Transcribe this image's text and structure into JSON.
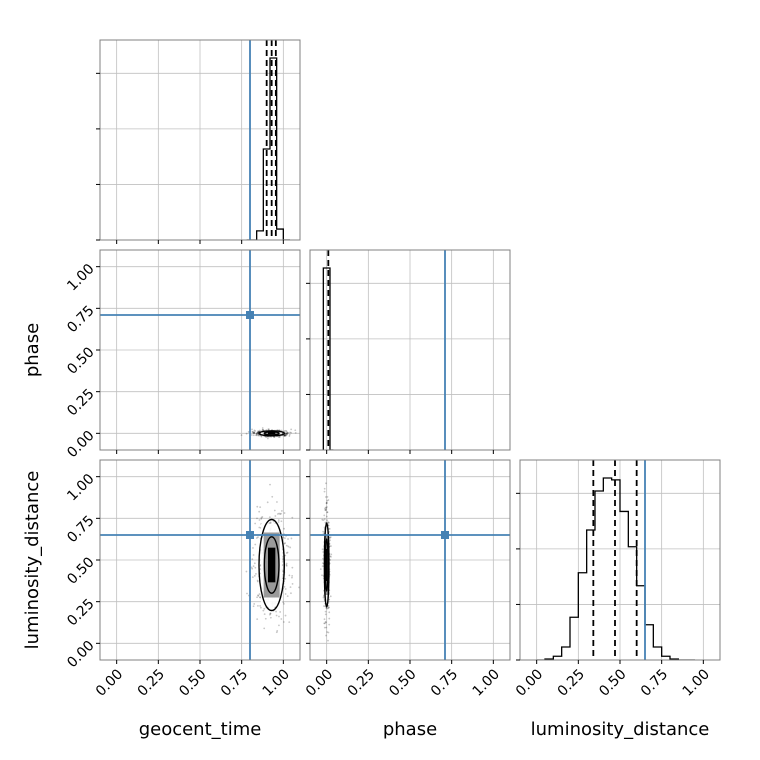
{
  "chart_data": {
    "type": "corner",
    "parameters": [
      "geocent_time",
      "phase",
      "luminosity_distance"
    ],
    "axis_range": [
      -0.1,
      1.1
    ],
    "tick_labels": [
      "0.00",
      "0.25",
      "0.50",
      "0.75",
      "1.00"
    ],
    "grid": true,
    "truth_values": {
      "geocent_time": 0.8,
      "phase": 0.71,
      "luminosity_distance": 0.65
    },
    "histograms": [
      {
        "parameter": "geocent_time",
        "bin_edges": [
          0.78,
          0.84,
          0.86,
          0.88,
          0.9,
          0.92,
          0.94,
          0.96,
          0.98,
          1.0,
          1.04
        ],
        "counts": [
          0,
          0.05,
          0.05,
          0.5,
          0.5,
          1.0,
          1.0,
          0.06,
          0.06,
          0
        ],
        "quantile_lines": [
          0.9,
          0.93,
          0.955
        ]
      },
      {
        "parameter": "phase",
        "bin_edges": [
          -0.02,
          0.0,
          0.02,
          0.04
        ],
        "counts": [
          1.0,
          1.0,
          0.0
        ],
        "quantile_lines": [
          0.01
        ]
      },
      {
        "parameter": "luminosity_distance",
        "bin_edges": [
          0.0,
          0.05,
          0.1,
          0.15,
          0.2,
          0.25,
          0.3,
          0.35,
          0.4,
          0.45,
          0.5,
          0.55,
          0.6,
          0.65,
          0.7,
          0.75,
          0.8,
          0.85,
          0.9,
          0.95
        ],
        "counts": [
          0,
          0.005,
          0.02,
          0.07,
          0.23,
          0.47,
          0.7,
          0.91,
          0.98,
          0.97,
          0.8,
          0.61,
          0.4,
          0.19,
          0.07,
          0.02,
          0.005,
          0,
          0
        ],
        "quantile_lines": [
          0.34,
          0.47,
          0.6
        ]
      }
    ],
    "density_2d": [
      {
        "x": "geocent_time",
        "y": "phase",
        "center": [
          0.93,
          0.0
        ],
        "spread": [
          0.04,
          0.004
        ]
      },
      {
        "x": "geocent_time",
        "y": "luminosity_distance",
        "center": [
          0.93,
          0.47
        ],
        "spread": [
          0.04,
          0.13
        ]
      },
      {
        "x": "phase",
        "y": "luminosity_distance",
        "center": [
          0.0,
          0.47
        ],
        "spread": [
          0.005,
          0.12
        ]
      }
    ]
  },
  "colors": {
    "truth": "#4682b4",
    "hist": "#000000",
    "grid": "#c0c0c0",
    "spine": "#808080"
  }
}
